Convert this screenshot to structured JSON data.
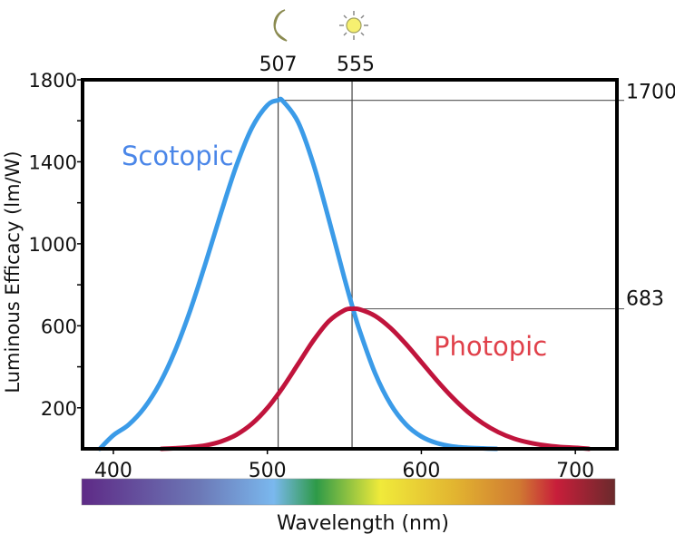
{
  "chart_data": {
    "type": "line",
    "title": "",
    "xlabel": "Wavelength (nm)",
    "ylabel": "Luminous Efficacy (lm/W)",
    "xlim": [
      380,
      727
    ],
    "ylim": [
      0,
      1800
    ],
    "x_ticks": [
      400,
      500,
      600,
      700
    ],
    "y_tick_labels": [
      200,
      600,
      1000,
      1400,
      1800
    ],
    "y_minor_ticks": [
      200,
      400,
      600,
      800,
      1000,
      1200,
      1400,
      1600,
      1800
    ],
    "grid": false,
    "series": [
      {
        "name": "Scotopic",
        "color": "#3b9be8",
        "label_color": "#4a86e8",
        "x": [
          400,
          410,
          420,
          430,
          440,
          450,
          460,
          470,
          480,
          490,
          500,
          507,
          510,
          520,
          530,
          540,
          550,
          555,
          560,
          570,
          580,
          590,
          600,
          610,
          620,
          630,
          640
        ],
        "y": [
          66,
          118,
          199,
          317,
          477,
          677,
          909,
          1153,
          1383,
          1566,
          1676,
          1700,
          1697,
          1593,
          1386,
          1117,
          833,
          699,
          575,
          368,
          218,
          119,
          60,
          28,
          12,
          5,
          2
        ]
      },
      {
        "name": "Photopic",
        "color": "#c0143c",
        "label_color": "#e0404a",
        "x": [
          440,
          450,
          460,
          470,
          480,
          490,
          500,
          510,
          520,
          530,
          540,
          550,
          555,
          560,
          570,
          580,
          590,
          600,
          610,
          620,
          630,
          640,
          650,
          660,
          670,
          680,
          690,
          700
        ],
        "y": [
          3,
          8,
          17,
          36,
          69,
          122,
          199,
          299,
          414,
          529,
          623,
          676,
          683,
          680,
          648,
          589,
          511,
          423,
          334,
          252,
          181,
          124,
          81,
          50,
          30,
          17,
          9,
          5
        ]
      }
    ],
    "annotations": {
      "peaks": [
        {
          "wavelength": 507,
          "label": "507",
          "value": 1700,
          "value_label": "1700",
          "icon": "moon-icon"
        },
        {
          "wavelength": 555,
          "label": "555",
          "value": 683,
          "value_label": "683",
          "icon": "sun-icon"
        }
      ]
    },
    "spectrum_bar": {
      "stops": [
        {
          "at": 0.0,
          "color": "#5e2a86"
        },
        {
          "at": 0.22,
          "color": "#6c78b6"
        },
        {
          "at": 0.36,
          "color": "#7ab8ee"
        },
        {
          "at": 0.44,
          "color": "#2e9a48"
        },
        {
          "at": 0.56,
          "color": "#f0ea3a"
        },
        {
          "at": 0.7,
          "color": "#e2b430"
        },
        {
          "at": 0.82,
          "color": "#d07a32"
        },
        {
          "at": 0.89,
          "color": "#c81e3a"
        },
        {
          "at": 1.0,
          "color": "#6a2a2c"
        }
      ]
    }
  }
}
